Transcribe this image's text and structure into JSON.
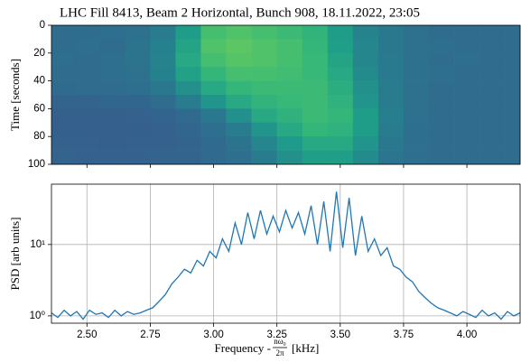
{
  "chart_data": [
    {
      "type": "heatmap",
      "title": "LHC Fill 8413, Beam 2 Horizontal, Bunch 908, 18.11.2022, 23:05",
      "ylabel": "Time [seconds]",
      "colormap": "viridis",
      "xlim": [
        2.36,
        4.21
      ],
      "ylim": [
        100,
        0
      ],
      "xticks": [
        2.5,
        2.75,
        3.0,
        3.25,
        3.5,
        3.75,
        4.0
      ],
      "yticks": [
        0,
        20,
        40,
        60,
        80,
        100
      ],
      "xbins": [
        2.36,
        2.45,
        2.55,
        2.65,
        2.75,
        2.85,
        2.95,
        3.05,
        3.15,
        3.25,
        3.35,
        3.45,
        3.55,
        3.65,
        3.75,
        3.85,
        3.95,
        4.05,
        4.15,
        4.21
      ],
      "ybins": [
        0,
        10,
        20,
        30,
        40,
        50,
        60,
        70,
        80,
        90,
        100
      ],
      "z": [
        [
          0.35,
          0.35,
          0.36,
          0.37,
          0.42,
          0.55,
          0.7,
          0.72,
          0.7,
          0.68,
          0.65,
          0.55,
          0.45,
          0.4,
          0.37,
          0.35,
          0.35,
          0.35,
          0.35
        ],
        [
          0.35,
          0.36,
          0.35,
          0.38,
          0.44,
          0.58,
          0.72,
          0.74,
          0.72,
          0.7,
          0.66,
          0.56,
          0.46,
          0.4,
          0.37,
          0.36,
          0.35,
          0.35,
          0.35
        ],
        [
          0.36,
          0.35,
          0.36,
          0.38,
          0.45,
          0.6,
          0.7,
          0.73,
          0.72,
          0.7,
          0.67,
          0.58,
          0.46,
          0.41,
          0.37,
          0.35,
          0.36,
          0.35,
          0.35
        ],
        [
          0.35,
          0.35,
          0.36,
          0.37,
          0.44,
          0.57,
          0.66,
          0.7,
          0.7,
          0.69,
          0.67,
          0.6,
          0.48,
          0.41,
          0.37,
          0.36,
          0.35,
          0.35,
          0.35
        ],
        [
          0.34,
          0.35,
          0.35,
          0.36,
          0.4,
          0.5,
          0.6,
          0.66,
          0.68,
          0.68,
          0.68,
          0.62,
          0.5,
          0.42,
          0.37,
          0.35,
          0.35,
          0.35,
          0.35
        ],
        [
          0.32,
          0.32,
          0.33,
          0.33,
          0.35,
          0.42,
          0.52,
          0.6,
          0.65,
          0.67,
          0.68,
          0.64,
          0.52,
          0.42,
          0.37,
          0.35,
          0.35,
          0.35,
          0.35
        ],
        [
          0.3,
          0.3,
          0.3,
          0.31,
          0.32,
          0.34,
          0.4,
          0.5,
          0.6,
          0.64,
          0.68,
          0.66,
          0.55,
          0.43,
          0.37,
          0.35,
          0.35,
          0.35,
          0.35
        ],
        [
          0.3,
          0.3,
          0.3,
          0.3,
          0.31,
          0.33,
          0.36,
          0.42,
          0.52,
          0.6,
          0.66,
          0.64,
          0.55,
          0.42,
          0.36,
          0.35,
          0.35,
          0.35,
          0.35
        ],
        [
          0.31,
          0.31,
          0.3,
          0.31,
          0.31,
          0.32,
          0.34,
          0.38,
          0.46,
          0.54,
          0.6,
          0.6,
          0.52,
          0.4,
          0.36,
          0.35,
          0.35,
          0.35,
          0.35
        ],
        [
          0.32,
          0.31,
          0.31,
          0.31,
          0.32,
          0.32,
          0.34,
          0.36,
          0.42,
          0.5,
          0.56,
          0.56,
          0.48,
          0.39,
          0.36,
          0.35,
          0.35,
          0.35,
          0.35
        ]
      ]
    },
    {
      "type": "line",
      "xlabel": {
        "prefix": "Frequency -",
        "numerator": "nω₀",
        "denominator": "2π",
        "suffix": "[kHz]"
      },
      "ylabel": "PSD [arb units]",
      "log_y": true,
      "grid": true,
      "xlim": [
        2.36,
        4.21
      ],
      "ylim": [
        0.79,
        70
      ],
      "xticks": [
        {
          "value": 2.5,
          "label": "2.50"
        },
        {
          "value": 2.75,
          "label": "2.75"
        },
        {
          "value": 3.0,
          "label": "3.00"
        },
        {
          "value": 3.25,
          "label": "3.25"
        },
        {
          "value": 3.5,
          "label": "3.50"
        },
        {
          "value": 3.75,
          "label": "3.75"
        },
        {
          "value": 4.0,
          "label": "4.00"
        }
      ],
      "yticks": [
        {
          "value": 1,
          "label": "10⁰"
        },
        {
          "value": 10,
          "label": "10¹"
        }
      ],
      "color": "#1f77b4",
      "x": [
        2.36,
        2.385,
        2.41,
        2.435,
        2.46,
        2.485,
        2.51,
        2.535,
        2.56,
        2.585,
        2.61,
        2.635,
        2.66,
        2.685,
        2.71,
        2.735,
        2.76,
        2.785,
        2.81,
        2.835,
        2.86,
        2.885,
        2.91,
        2.935,
        2.96,
        2.985,
        3.01,
        3.035,
        3.06,
        3.085,
        3.11,
        3.135,
        3.16,
        3.185,
        3.21,
        3.235,
        3.26,
        3.285,
        3.31,
        3.335,
        3.36,
        3.385,
        3.41,
        3.435,
        3.46,
        3.485,
        3.51,
        3.535,
        3.56,
        3.585,
        3.61,
        3.635,
        3.66,
        3.685,
        3.71,
        3.735,
        3.76,
        3.785,
        3.81,
        3.835,
        3.86,
        3.885,
        3.91,
        3.935,
        3.96,
        3.985,
        4.01,
        4.035,
        4.06,
        4.085,
        4.11,
        4.135,
        4.16,
        4.185,
        4.21
      ],
      "values": [
        1.1,
        0.95,
        1.2,
        1.0,
        1.15,
        0.9,
        1.2,
        1.05,
        1.1,
        0.95,
        1.2,
        1.0,
        1.15,
        1.05,
        1.1,
        1.2,
        1.3,
        1.6,
        2.0,
        2.8,
        3.5,
        4.5,
        4.0,
        6,
        5,
        8,
        6.5,
        12,
        8,
        20,
        10,
        28,
        12,
        30,
        14,
        25,
        15,
        30,
        17,
        28,
        14,
        35,
        10,
        40,
        8,
        55,
        9,
        45,
        7,
        25,
        8,
        12,
        7,
        9,
        5,
        4.5,
        3.5,
        3,
        2.2,
        1.8,
        1.5,
        1.3,
        1.2,
        1.1,
        1.0,
        1.15,
        1.05,
        0.95,
        1.2,
        1.0,
        1.1,
        0.9,
        1.15,
        1.0,
        1.1
      ]
    }
  ]
}
